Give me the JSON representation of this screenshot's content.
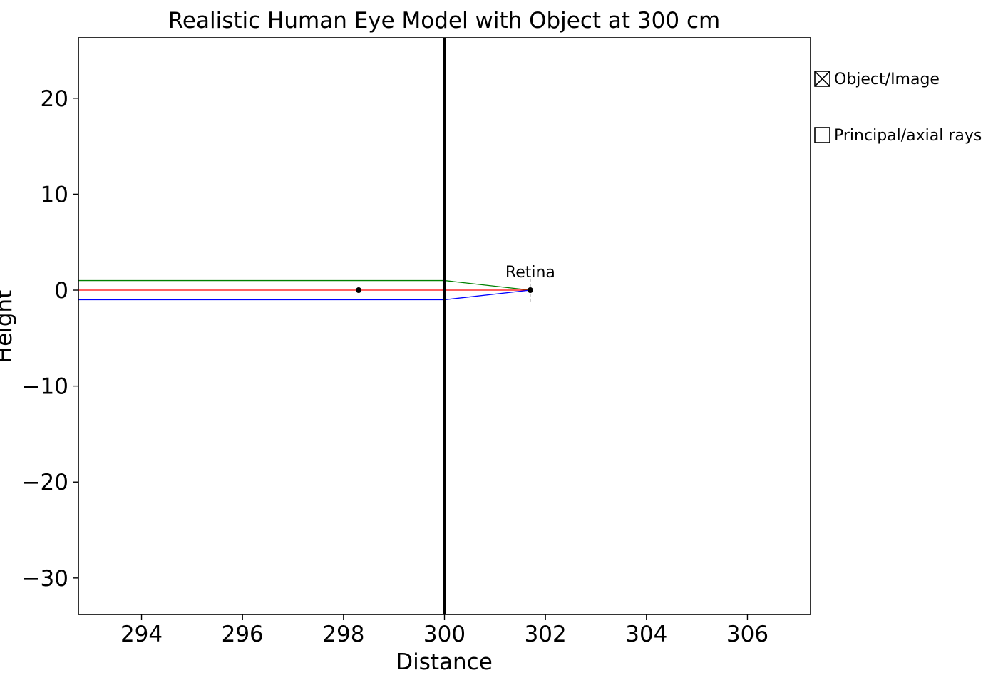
{
  "chart_data": {
    "type": "line",
    "title": "Realistic Human Eye Model with Object at 300 cm",
    "xlabel": "Distance",
    "ylabel": "Height",
    "xlim": [
      292.75,
      307.25
    ],
    "ylim": [
      -33.8,
      26.3
    ],
    "xticks": [
      294,
      296,
      298,
      300,
      302,
      304,
      306
    ],
    "yticks": [
      20,
      10,
      0,
      -10,
      -20,
      -30
    ],
    "xtick_labels": [
      "294",
      "296",
      "298",
      "300",
      "302",
      "304",
      "306"
    ],
    "ytick_labels": [
      "20",
      "10",
      "0",
      "−10",
      "−20",
      "−30"
    ],
    "grid": false,
    "legend": {
      "placement": "outside-right",
      "entries": [
        {
          "label": "Object/Image",
          "marker": "crossed-box"
        },
        {
          "label": "Principal/axial rays",
          "marker": "box"
        }
      ]
    },
    "lens_position_x": 300,
    "retina": {
      "x": 301.7,
      "label": "Retina",
      "half_height": 1.2
    },
    "points": [
      {
        "name": "focal-point",
        "x": 298.3,
        "y": 0
      },
      {
        "name": "retina-image-point",
        "x": 301.7,
        "y": 0
      }
    ],
    "series": [
      {
        "color": "#008000",
        "x": [
          292.75,
          300,
          301.7
        ],
        "y": [
          1,
          1,
          0
        ]
      },
      {
        "color": "#ff0000",
        "x": [
          292.75,
          301.7
        ],
        "y": [
          0,
          0
        ]
      },
      {
        "color": "#0000ff",
        "x": [
          292.75,
          300,
          301.7
        ],
        "y": [
          -1,
          -1,
          0
        ]
      }
    ]
  }
}
